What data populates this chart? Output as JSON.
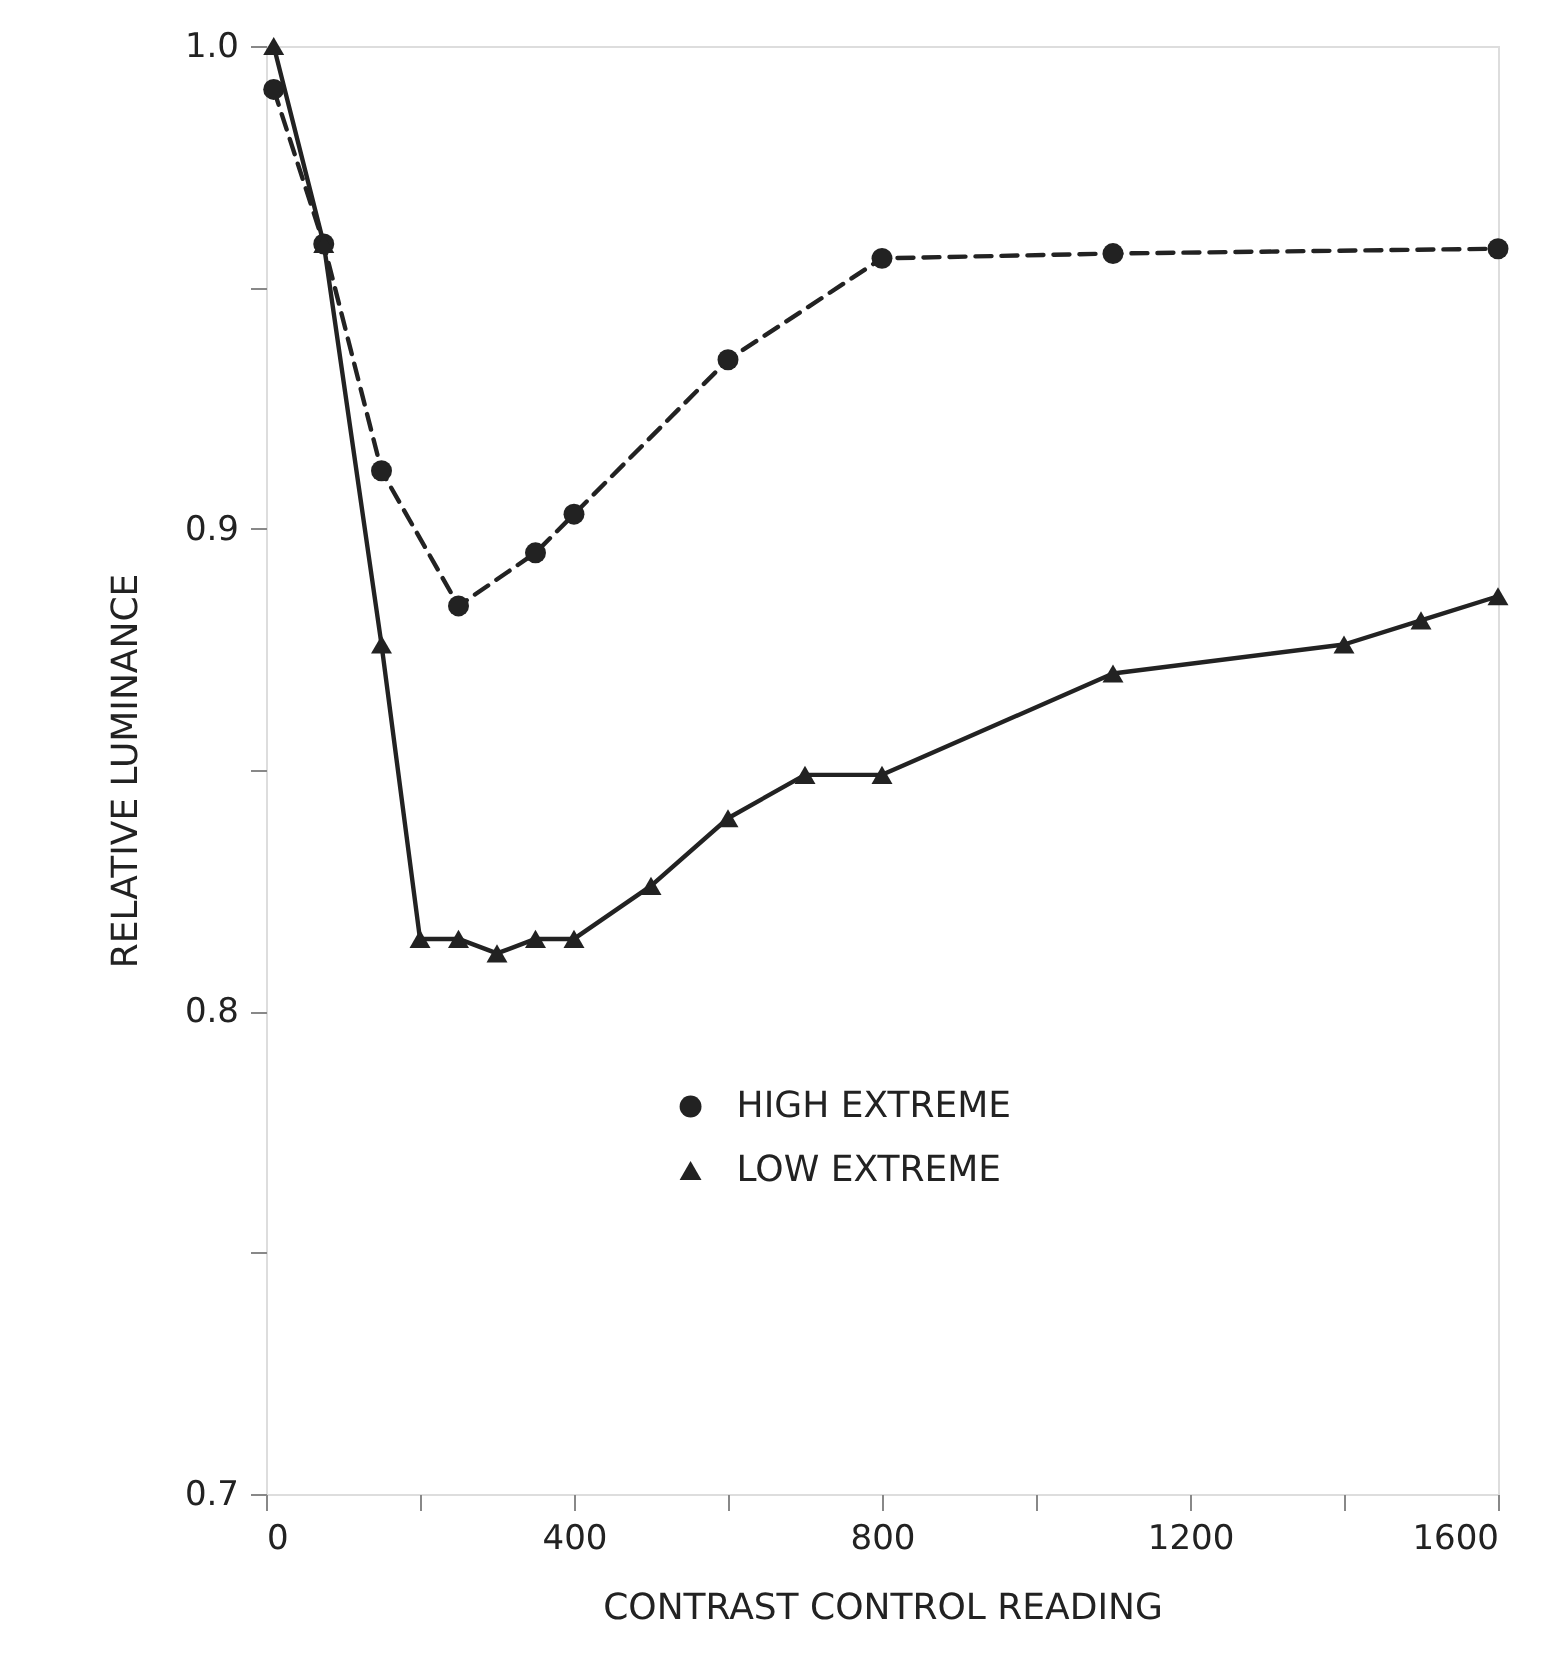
{
  "chart_data": {
    "type": "line",
    "xlabel": "CONTRAST CONTROL READING",
    "ylabel": "RELATIVE LUMINANCE",
    "xlim": [
      0,
      1600
    ],
    "ylim": [
      0.7,
      1.0
    ],
    "xticks": [
      0,
      {
        "value": 200,
        "label": null
      },
      400,
      {
        "value": 600,
        "label": null
      },
      800,
      {
        "value": 1000,
        "label": null
      },
      1200,
      {
        "value": 1400,
        "label": null
      },
      1600
    ],
    "yticks": [
      0.7,
      {
        "value": 0.75,
        "label": null
      },
      0.8,
      {
        "value": 0.85,
        "label": null
      },
      0.9,
      {
        "value": 0.95,
        "label": null
      },
      {
        "value": 1.0,
        "label": "1.0"
      }
    ],
    "grid": false,
    "legend": "bottom",
    "series": [
      {
        "name": "HIGH EXTREME",
        "color": "#222222",
        "marker": "circle",
        "line_style": "dashed",
        "x": [
          10,
          75,
          150,
          250,
          350,
          400,
          600,
          800,
          1100,
          1600
        ],
        "values": [
          0.991,
          0.959,
          0.912,
          0.884,
          0.895,
          0.903,
          0.935,
          0.956,
          0.957,
          0.958
        ]
      },
      {
        "name": "LOW EXTREME",
        "color": "#222222",
        "marker": "triangle",
        "line_style": "solid",
        "x": [
          10,
          75,
          150,
          200,
          250,
          300,
          350,
          400,
          500,
          600,
          700,
          800,
          1100,
          1400,
          1500,
          1600
        ],
        "values": [
          1.0,
          0.959,
          0.876,
          0.815,
          0.815,
          0.812,
          0.815,
          0.815,
          0.826,
          0.84,
          0.849,
          0.849,
          0.87,
          0.876,
          0.881,
          0.886
        ]
      }
    ]
  }
}
